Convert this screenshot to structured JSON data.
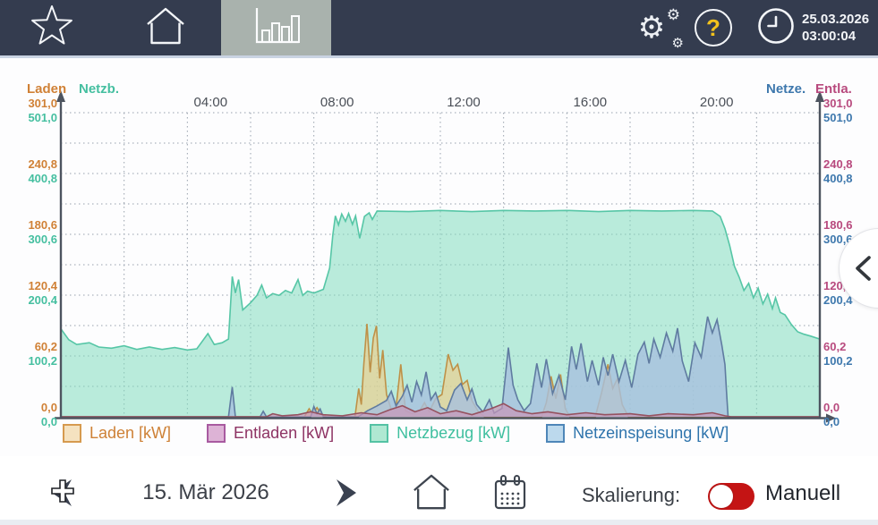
{
  "header": {
    "datetime": {
      "date": "25.03.2026",
      "time": "03:00:04"
    },
    "help_mark": "?",
    "colors": {
      "bar_bg": "#343C4F",
      "active_tab_bg": "#A9B2AD",
      "help_accent": "#F2C21C"
    }
  },
  "chart": {
    "left_axis": {
      "primary_name": "Laden",
      "secondary_name": "Netzb."
    },
    "right_axis": {
      "primary_name": "Netze.",
      "secondary_name": "Entla."
    },
    "left_ticks_primary": [
      "301,0",
      "240,8",
      "180,6",
      "120,4",
      "60,2",
      "0,0"
    ],
    "left_ticks_secondary": [
      "501,0",
      "400,8",
      "300,6",
      "200,4",
      "100,2",
      "0,0"
    ],
    "right_ticks_primary": [
      "301,0",
      "240,8",
      "180,6",
      "120,4",
      "60,2",
      "0,0"
    ],
    "right_ticks_secondary": [
      "501,0",
      "400,8",
      "300,6",
      "200,4",
      "100,2",
      "0,0"
    ],
    "time_ticks": [
      "04:00",
      "08:00",
      "12:00",
      "16:00",
      "20:00"
    ],
    "time_tick_hours": [
      4,
      8,
      12,
      16,
      20
    ]
  },
  "chart_data": {
    "type": "area",
    "x_unit": "hour_of_day",
    "x_range": [
      0,
      24
    ],
    "x_tick_labels": [
      "04:00",
      "08:00",
      "12:00",
      "16:00",
      "20:00"
    ],
    "grid": true,
    "axes": [
      {
        "name": "Laden",
        "unit": "kW",
        "side": "left",
        "range": [
          0,
          301
        ],
        "ticks": [
          0,
          60.2,
          120.4,
          180.6,
          240.8,
          301.0
        ],
        "color": "#D08136"
      },
      {
        "name": "Netzb.",
        "unit": "kW",
        "side": "left",
        "range": [
          0,
          501
        ],
        "ticks": [
          0,
          100.2,
          200.4,
          300.6,
          400.8,
          501.0
        ],
        "color": "#45BFA0"
      },
      {
        "name": "Netze.",
        "unit": "kW",
        "side": "right",
        "range": [
          0,
          501
        ],
        "ticks": [
          0,
          100.2,
          200.4,
          300.6,
          400.8,
          501.0
        ],
        "color": "#3E78AD"
      },
      {
        "name": "Entla.",
        "unit": "kW",
        "side": "right",
        "range": [
          0,
          301
        ],
        "ticks": [
          0,
          60.2,
          120.4,
          180.6,
          240.8,
          301.0
        ],
        "color": "#B84A7E"
      }
    ],
    "series": [
      {
        "name": "Netzbezug [kW]",
        "axis_max": 501,
        "line_color": "#56C6A6",
        "fill_color": "rgba(130,220,190,0.55)",
        "points": [
          [
            0,
            145
          ],
          [
            0.25,
            127
          ],
          [
            0.5,
            119
          ],
          [
            0.9,
            122
          ],
          [
            1.2,
            115
          ],
          [
            1.6,
            113
          ],
          [
            2,
            117
          ],
          [
            2.4,
            111
          ],
          [
            2.8,
            115
          ],
          [
            3.2,
            111
          ],
          [
            3.6,
            114
          ],
          [
            4,
            110
          ],
          [
            4.3,
            112
          ],
          [
            4.65,
            137
          ],
          [
            4.85,
            119
          ],
          [
            5.1,
            122
          ],
          [
            5.3,
            128
          ],
          [
            5.42,
            231
          ],
          [
            5.52,
            204
          ],
          [
            5.62,
            226
          ],
          [
            5.75,
            176
          ],
          [
            6,
            188
          ],
          [
            6.2,
            200
          ],
          [
            6.35,
            217
          ],
          [
            6.5,
            196
          ],
          [
            6.7,
            203
          ],
          [
            6.9,
            200
          ],
          [
            7.1,
            208
          ],
          [
            7.3,
            204
          ],
          [
            7.5,
            226
          ],
          [
            7.65,
            200
          ],
          [
            7.8,
            207
          ],
          [
            8,
            204
          ],
          [
            8.3,
            210
          ],
          [
            8.5,
            245
          ],
          [
            8.6,
            300
          ],
          [
            8.68,
            331
          ],
          [
            8.78,
            316
          ],
          [
            8.88,
            334
          ],
          [
            9,
            322
          ],
          [
            9.1,
            335
          ],
          [
            9.22,
            317
          ],
          [
            9.32,
            331
          ],
          [
            9.45,
            294
          ],
          [
            9.6,
            330
          ],
          [
            9.75,
            336
          ],
          [
            9.85,
            325
          ],
          [
            10,
            339
          ],
          [
            11,
            338
          ],
          [
            12,
            340
          ],
          [
            13,
            338
          ],
          [
            14,
            340
          ],
          [
            15,
            339
          ],
          [
            16,
            340
          ],
          [
            17,
            338
          ],
          [
            18,
            340
          ],
          [
            19,
            339
          ],
          [
            20,
            340
          ],
          [
            20.6,
            339
          ],
          [
            20.85,
            330
          ],
          [
            21,
            310
          ],
          [
            21.15,
            282
          ],
          [
            21.3,
            248
          ],
          [
            21.45,
            230
          ],
          [
            21.6,
            208
          ],
          [
            21.75,
            220
          ],
          [
            21.9,
            196
          ],
          [
            22.05,
            212
          ],
          [
            22.2,
            186
          ],
          [
            22.35,
            202
          ],
          [
            22.5,
            178
          ],
          [
            22.6,
            196
          ],
          [
            22.75,
            172
          ],
          [
            22.9,
            168
          ],
          [
            23.1,
            152
          ],
          [
            23.3,
            140
          ],
          [
            23.5,
            136
          ],
          [
            23.7,
            133
          ],
          [
            24,
            128
          ]
        ]
      },
      {
        "name": "Laden [kW]",
        "axis_max": 301,
        "line_color": "#BE9148",
        "fill_color": "rgba(242,205,135,0.62)",
        "points": [
          [
            0,
            0
          ],
          [
            7.7,
            0
          ],
          [
            7.85,
            8
          ],
          [
            7.95,
            3
          ],
          [
            8.1,
            9
          ],
          [
            8.25,
            2
          ],
          [
            8.4,
            0
          ],
          [
            9.3,
            0
          ],
          [
            9.42,
            28
          ],
          [
            9.5,
            12
          ],
          [
            9.58,
            52
          ],
          [
            9.68,
            92
          ],
          [
            9.78,
            44
          ],
          [
            9.88,
            78
          ],
          [
            9.98,
            90
          ],
          [
            10.08,
            38
          ],
          [
            10.18,
            66
          ],
          [
            10.3,
            22
          ],
          [
            10.45,
            7
          ],
          [
            10.6,
            9
          ],
          [
            10.75,
            52
          ],
          [
            10.9,
            6
          ],
          [
            11.1,
            3
          ],
          [
            11.35,
            6
          ],
          [
            11.5,
            14
          ],
          [
            11.65,
            5
          ],
          [
            11.85,
            18
          ],
          [
            12.05,
            22
          ],
          [
            12.25,
            62
          ],
          [
            12.4,
            46
          ],
          [
            12.55,
            52
          ],
          [
            12.7,
            32
          ],
          [
            12.85,
            36
          ],
          [
            13,
            16
          ],
          [
            13.2,
            5
          ],
          [
            13.4,
            0
          ],
          [
            15.2,
            0
          ],
          [
            15.35,
            14
          ],
          [
            15.5,
            40
          ],
          [
            15.65,
            18
          ],
          [
            15.8,
            42
          ],
          [
            15.95,
            8
          ],
          [
            16.1,
            0
          ],
          [
            16.9,
            0
          ],
          [
            17.1,
            24
          ],
          [
            17.3,
            52
          ],
          [
            17.45,
            28
          ],
          [
            17.6,
            38
          ],
          [
            17.75,
            12
          ],
          [
            17.95,
            0
          ],
          [
            24,
            0
          ]
        ]
      },
      {
        "name": "Netzeinspeisung [kW]",
        "axis_max": 501,
        "line_color": "#5F7BA0",
        "fill_color": "rgba(168,192,222,0.8)",
        "points": [
          [
            0,
            0
          ],
          [
            5.3,
            0
          ],
          [
            5.42,
            49
          ],
          [
            5.52,
            0
          ],
          [
            6.3,
            0
          ],
          [
            6.4,
            9
          ],
          [
            6.5,
            0
          ],
          [
            7.9,
            0
          ],
          [
            8,
            17
          ],
          [
            8.1,
            5
          ],
          [
            8.2,
            13
          ],
          [
            8.3,
            0
          ],
          [
            9.4,
            0
          ],
          [
            9.7,
            10
          ],
          [
            10,
            18
          ],
          [
            10.3,
            27
          ],
          [
            10.45,
            42
          ],
          [
            10.6,
            18
          ],
          [
            10.8,
            34
          ],
          [
            10.95,
            52
          ],
          [
            11.1,
            24
          ],
          [
            11.25,
            58
          ],
          [
            11.4,
            36
          ],
          [
            11.55,
            74
          ],
          [
            11.7,
            28
          ],
          [
            11.85,
            40
          ],
          [
            12,
            16
          ],
          [
            12.2,
            10
          ],
          [
            12.45,
            44
          ],
          [
            12.65,
            55
          ],
          [
            12.85,
            28
          ],
          [
            13,
            46
          ],
          [
            13.15,
            20
          ],
          [
            13.35,
            8
          ],
          [
            13.55,
            28
          ],
          [
            13.7,
            6
          ],
          [
            13.95,
            14
          ],
          [
            14.15,
            114
          ],
          [
            14.3,
            52
          ],
          [
            14.45,
            28
          ],
          [
            14.65,
            10
          ],
          [
            14.85,
            22
          ],
          [
            15.05,
            88
          ],
          [
            15.2,
            48
          ],
          [
            15.35,
            95
          ],
          [
            15.55,
            38
          ],
          [
            15.75,
            68
          ],
          [
            15.95,
            28
          ],
          [
            16.15,
            116
          ],
          [
            16.3,
            78
          ],
          [
            16.45,
            121
          ],
          [
            16.65,
            58
          ],
          [
            16.8,
            93
          ],
          [
            17,
            52
          ],
          [
            17.15,
            98
          ],
          [
            17.3,
            68
          ],
          [
            17.45,
            103
          ],
          [
            17.65,
            58
          ],
          [
            17.85,
            93
          ],
          [
            18.05,
            48
          ],
          [
            18.25,
            103
          ],
          [
            18.45,
            123
          ],
          [
            18.6,
            88
          ],
          [
            18.75,
            128
          ],
          [
            18.95,
            98
          ],
          [
            19.15,
            138
          ],
          [
            19.35,
            108
          ],
          [
            19.5,
            146
          ],
          [
            19.65,
            92
          ],
          [
            19.85,
            58
          ],
          [
            20.05,
            122
          ],
          [
            20.25,
            98
          ],
          [
            20.45,
            165
          ],
          [
            20.6,
            138
          ],
          [
            20.75,
            160
          ],
          [
            20.9,
            118
          ],
          [
            21,
            86
          ],
          [
            21.05,
            40
          ],
          [
            21.1,
            0
          ],
          [
            24,
            0
          ]
        ]
      },
      {
        "name": "Entladen [kW]",
        "axis_max": 301,
        "line_color": "#95525F",
        "fill_color": "rgba(200,150,185,0.7)",
        "points": [
          [
            0,
            0
          ],
          [
            6.5,
            0
          ],
          [
            6.7,
            3
          ],
          [
            7,
            1
          ],
          [
            7.5,
            2
          ],
          [
            7.9,
            5
          ],
          [
            8.3,
            2
          ],
          [
            8.9,
            1
          ],
          [
            9.5,
            4
          ],
          [
            10,
            2
          ],
          [
            10.4,
            7
          ],
          [
            10.8,
            11
          ],
          [
            11.2,
            5
          ],
          [
            11.6,
            9
          ],
          [
            12,
            3
          ],
          [
            12.5,
            6
          ],
          [
            13,
            2
          ],
          [
            13.6,
            8
          ],
          [
            14,
            13
          ],
          [
            14.4,
            6
          ],
          [
            14.9,
            3
          ],
          [
            15.4,
            5
          ],
          [
            16,
            2
          ],
          [
            16.6,
            4
          ],
          [
            17.2,
            2
          ],
          [
            18,
            3
          ],
          [
            18.6,
            1
          ],
          [
            19.2,
            3
          ],
          [
            20,
            2
          ],
          [
            20.6,
            4
          ],
          [
            21,
            1
          ],
          [
            21.2,
            0
          ],
          [
            24,
            0
          ]
        ]
      }
    ]
  },
  "legend": {
    "items": [
      {
        "label": "Laden [kW]",
        "text_color": "#CE8136",
        "swatch_border": "#D69A4F",
        "swatch_fill": "#F5E2C0"
      },
      {
        "label": "Entladen [kW]",
        "text_color": "#8E3464",
        "swatch_border": "#A85AA0",
        "swatch_fill": "#DDB3D6"
      },
      {
        "label": "Netzbezug [kW]",
        "text_color": "#3FBF9F",
        "swatch_border": "#54C2A4",
        "swatch_fill": "#AFE8D2"
      },
      {
        "label": "Netzeinspeisung [kW]",
        "text_color": "#2E74AC",
        "swatch_border": "#4E86B8",
        "swatch_fill": "#BCD9ED"
      }
    ]
  },
  "footer": {
    "date_label": "15. Mär 2026",
    "scaling_label": "Skalierung:",
    "scaling_value": "Manuell",
    "toggle_color": "#C41414"
  }
}
